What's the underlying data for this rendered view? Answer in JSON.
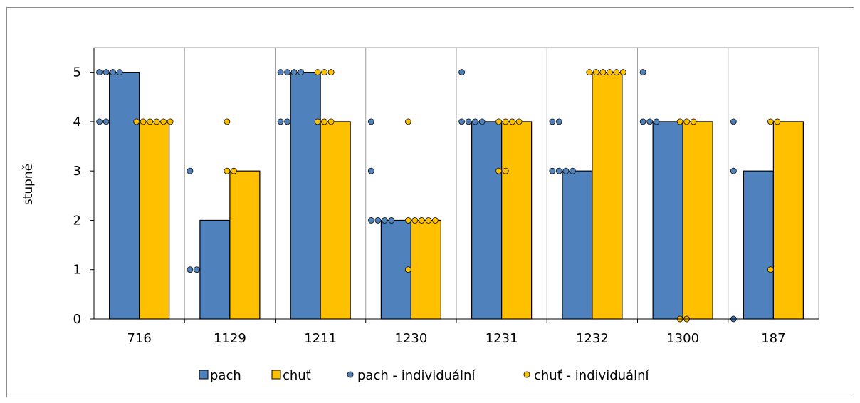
{
  "chart_data": {
    "type": "bar",
    "ylabel": "stupně",
    "xlabel": "",
    "ylim": [
      0,
      5.5
    ],
    "yticks": [
      0,
      1,
      2,
      3,
      4,
      5
    ],
    "grid": "vertical separators between categories",
    "legend_position": "bottom",
    "categories": [
      "716",
      "1129",
      "1211",
      "1230",
      "1231",
      "1232",
      "1300",
      "187"
    ],
    "series": [
      {
        "name": "pach",
        "type": "bar",
        "color": "#4f81bd",
        "values": [
          5,
          2,
          5,
          2,
          4,
          3,
          4,
          3
        ]
      },
      {
        "name": "chuť",
        "type": "bar",
        "color": "#ffc000",
        "values": [
          4,
          3,
          4,
          2,
          4,
          5,
          4,
          4
        ]
      },
      {
        "name": "pach - individuální",
        "type": "scatter",
        "color": "#4f81bd",
        "values": [
          [
            5,
            5,
            5,
            5,
            4,
            4
          ],
          [
            1,
            1,
            3
          ],
          [
            5,
            5,
            5,
            5,
            4,
            4
          ],
          [
            4,
            3,
            2,
            2,
            2,
            2
          ],
          [
            4,
            4,
            4,
            4,
            5
          ],
          [
            4,
            3,
            3,
            3,
            3,
            4
          ],
          [
            4,
            4,
            4,
            5
          ],
          [
            3,
            0,
            4
          ]
        ]
      },
      {
        "name": "chuť - individuální",
        "type": "scatter",
        "color": "#ffc000",
        "values": [
          [
            4,
            4,
            4,
            4,
            4,
            4
          ],
          [
            4,
            3,
            3
          ],
          [
            5,
            5,
            5,
            4,
            4,
            4
          ],
          [
            4,
            2,
            2,
            2,
            2,
            1,
            2
          ],
          [
            4,
            4,
            4,
            4,
            3,
            3
          ],
          [
            5,
            5,
            5,
            5,
            5,
            5
          ],
          [
            4,
            4,
            0,
            4,
            0
          ],
          [
            4,
            4,
            1
          ]
        ]
      }
    ]
  }
}
